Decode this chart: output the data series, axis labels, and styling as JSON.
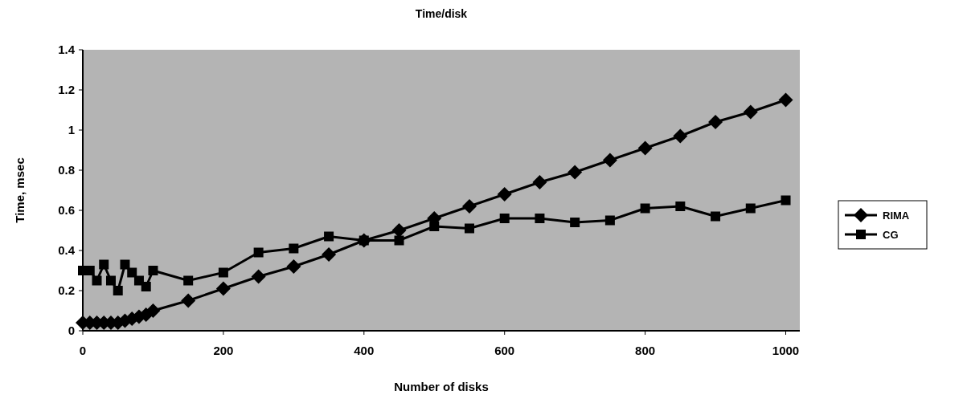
{
  "chart_data": {
    "type": "line",
    "title": "Time/disk",
    "xlabel": "Number of disks",
    "ylabel": "Time, msec",
    "x": [
      0,
      10,
      20,
      30,
      40,
      50,
      60,
      70,
      80,
      90,
      100,
      150,
      200,
      250,
      300,
      350,
      400,
      450,
      500,
      550,
      600,
      650,
      700,
      750,
      800,
      850,
      900,
      950,
      1000
    ],
    "series": [
      {
        "name": "RIMA",
        "color": "#000000",
        "marker": "diamond",
        "values": [
          0.04,
          0.04,
          0.04,
          0.04,
          0.04,
          0.04,
          0.05,
          0.06,
          0.07,
          0.08,
          0.1,
          0.15,
          0.21,
          0.27,
          0.32,
          0.38,
          0.45,
          0.5,
          0.56,
          0.62,
          0.68,
          0.74,
          0.79,
          0.85,
          0.91,
          0.97,
          1.04,
          1.09,
          1.15
        ]
      },
      {
        "name": "CG",
        "color": "#000000",
        "marker": "square",
        "values": [
          0.3,
          0.3,
          0.25,
          0.33,
          0.25,
          0.2,
          0.33,
          0.29,
          0.25,
          0.22,
          0.3,
          0.25,
          0.29,
          0.39,
          0.41,
          0.47,
          0.45,
          0.45,
          0.52,
          0.51,
          0.56,
          0.56,
          0.54,
          0.55,
          0.61,
          0.62,
          0.57,
          0.61,
          0.65
        ]
      }
    ],
    "xlim": [
      0,
      1020
    ],
    "xticks": [
      0,
      200,
      400,
      600,
      800,
      1000
    ],
    "ylim": [
      0,
      1.4
    ],
    "yticks": [
      0,
      0.2,
      0.4,
      0.6,
      0.8,
      1,
      1.2,
      1.4
    ],
    "legend": "right",
    "line_style": "solid"
  }
}
